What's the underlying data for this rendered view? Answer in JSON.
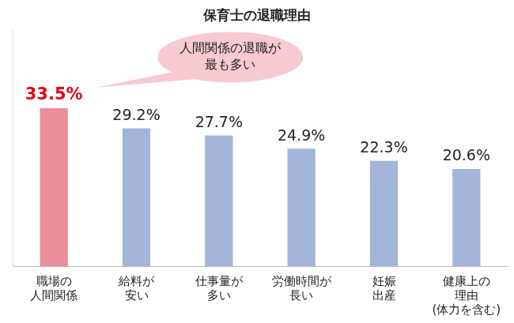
{
  "chart_data": {
    "type": "bar",
    "title": "保育士の退職理由",
    "annotation": [
      "人間関係の退職が",
      "最も多い"
    ],
    "categories": [
      [
        "職場の",
        "人間関係"
      ],
      [
        "給料が",
        "安い"
      ],
      [
        "仕事量が",
        "多い"
      ],
      [
        "労働時間が",
        "長い"
      ],
      [
        "妊娠",
        "出産"
      ],
      [
        "健康上の",
        "理由",
        "(体力を含む)"
      ]
    ],
    "values": [
      33.5,
      29.2,
      27.7,
      24.9,
      22.3,
      20.6
    ],
    "value_labels": [
      "33.5%",
      "29.2%",
      "27.7%",
      "24.9%",
      "22.3%",
      "20.6%"
    ],
    "colors": [
      "#ea8d9c",
      "#a3b5d8",
      "#a3b5d8",
      "#a3b5d8",
      "#a3b5d8",
      "#a3b5d8"
    ],
    "ylim": [
      0,
      50
    ],
    "grid": false,
    "data_labels": true,
    "tick_labels": "x"
  }
}
